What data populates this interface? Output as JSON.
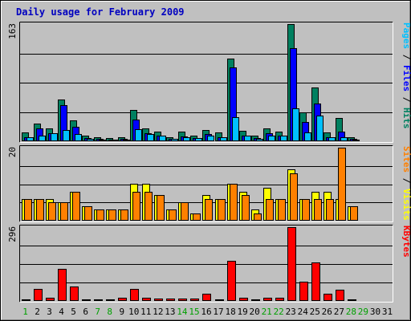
{
  "title": "Daily usage for February 2009",
  "colors": {
    "background": "#c0c0c0",
    "plot_bg": "#c0c0c0",
    "title": "#0000c0",
    "hits": "#008060",
    "files": "#0000ff",
    "pages": "#00c0ff",
    "visits": "#ffff00",
    "sites": "#ff8000",
    "kbytes": "#ff0000",
    "weekend_day": "#00a000",
    "weekday": "#000000"
  },
  "chart_data": [
    {
      "type": "bar",
      "panel": "hits-files-pages",
      "ymax_label": "163",
      "ylim": [
        0,
        163
      ],
      "axis_label_parts": [
        "Pages",
        " / ",
        "Files",
        " / ",
        "Hits"
      ],
      "categories": [
        "1",
        "2",
        "3",
        "4",
        "5",
        "6",
        "7",
        "8",
        "9",
        "10",
        "11",
        "12",
        "13",
        "14",
        "15",
        "16",
        "17",
        "18",
        "19",
        "20",
        "21",
        "22",
        "23",
        "24",
        "25",
        "26",
        "27",
        "28",
        "29",
        "30",
        "31"
      ],
      "series": [
        {
          "name": "Hits",
          "values": [
            12,
            25,
            18,
            58,
            29,
            8,
            6,
            5,
            6,
            44,
            18,
            13,
            6,
            13,
            8,
            16,
            12,
            115,
            14,
            8,
            18,
            13,
            163,
            40,
            75,
            12,
            32,
            6,
            0,
            0,
            0
          ]
        },
        {
          "name": "Files",
          "values": [
            6,
            18,
            11,
            50,
            20,
            4,
            3,
            2,
            3,
            30,
            11,
            8,
            3,
            7,
            4,
            10,
            6,
            103,
            8,
            4,
            11,
            8,
            130,
            27,
            53,
            6,
            13,
            3,
            0,
            0,
            0
          ]
        },
        {
          "name": "Pages",
          "values": [
            6,
            8,
            11,
            16,
            10,
            3,
            2,
            2,
            2,
            17,
            10,
            8,
            3,
            6,
            4,
            8,
            6,
            33,
            8,
            3,
            8,
            8,
            46,
            12,
            36,
            6,
            6,
            2,
            0,
            0,
            0
          ]
        }
      ]
    },
    {
      "type": "bar",
      "panel": "visits-sites",
      "ymax_label": "20",
      "ylim": [
        0,
        20
      ],
      "axis_label_parts": [
        "Sites",
        " / ",
        "Visits"
      ],
      "categories": [
        "1",
        "2",
        "3",
        "4",
        "5",
        "6",
        "7",
        "8",
        "9",
        "10",
        "11",
        "12",
        "13",
        "14",
        "15",
        "16",
        "17",
        "18",
        "19",
        "20",
        "21",
        "22",
        "23",
        "24",
        "25",
        "26",
        "27",
        "28",
        "29",
        "30",
        "31"
      ],
      "series": [
        {
          "name": "Visits",
          "values": [
            6,
            6,
            6,
            5,
            8,
            4,
            3,
            3,
            3,
            10,
            10,
            7,
            3,
            5,
            2,
            7,
            6,
            10,
            8,
            3,
            9,
            6,
            14,
            6,
            8,
            8,
            6,
            4,
            0,
            0,
            0
          ]
        },
        {
          "name": "Sites",
          "values": [
            6,
            6,
            5,
            5,
            8,
            4,
            3,
            3,
            3,
            8,
            8,
            7,
            3,
            5,
            2,
            6,
            6,
            10,
            7,
            2,
            6,
            6,
            13,
            6,
            6,
            6,
            20,
            4,
            0,
            0,
            0
          ]
        }
      ]
    },
    {
      "type": "bar",
      "panel": "kbytes",
      "ymax_label": "296",
      "ylim": [
        0,
        296
      ],
      "axis_label_parts": [
        "KBytes"
      ],
      "categories": [
        "1",
        "2",
        "3",
        "4",
        "5",
        "6",
        "7",
        "8",
        "9",
        "10",
        "11",
        "12",
        "13",
        "14",
        "15",
        "16",
        "17",
        "18",
        "19",
        "20",
        "21",
        "22",
        "23",
        "24",
        "25",
        "26",
        "27",
        "28",
        "29",
        "30",
        "31"
      ],
      "series": [
        {
          "name": "KBytes",
          "values": [
            8,
            47,
            14,
            128,
            58,
            8,
            5,
            5,
            12,
            47,
            12,
            10,
            10,
            10,
            10,
            30,
            8,
            162,
            12,
            5,
            12,
            14,
            296,
            78,
            155,
            30,
            45,
            6,
            0,
            0,
            0
          ]
        }
      ]
    }
  ],
  "x_labels": [
    {
      "label": "1",
      "weekend": true
    },
    {
      "label": "2",
      "weekend": false
    },
    {
      "label": "3",
      "weekend": false
    },
    {
      "label": "4",
      "weekend": false
    },
    {
      "label": "5",
      "weekend": false
    },
    {
      "label": "6",
      "weekend": false
    },
    {
      "label": "7",
      "weekend": true
    },
    {
      "label": "8",
      "weekend": true
    },
    {
      "label": "9",
      "weekend": false
    },
    {
      "label": "10",
      "weekend": false
    },
    {
      "label": "11",
      "weekend": false
    },
    {
      "label": "12",
      "weekend": false
    },
    {
      "label": "13",
      "weekend": false
    },
    {
      "label": "14",
      "weekend": true
    },
    {
      "label": "15",
      "weekend": true
    },
    {
      "label": "16",
      "weekend": false
    },
    {
      "label": "17",
      "weekend": false
    },
    {
      "label": "18",
      "weekend": false
    },
    {
      "label": "19",
      "weekend": false
    },
    {
      "label": "20",
      "weekend": false
    },
    {
      "label": "21",
      "weekend": true
    },
    {
      "label": "22",
      "weekend": true
    },
    {
      "label": "23",
      "weekend": false
    },
    {
      "label": "24",
      "weekend": false
    },
    {
      "label": "25",
      "weekend": false
    },
    {
      "label": "26",
      "weekend": false
    },
    {
      "label": "27",
      "weekend": false
    },
    {
      "label": "28",
      "weekend": true
    },
    {
      "label": "29",
      "weekend": true
    },
    {
      "label": "30",
      "weekend": false
    },
    {
      "label": "31",
      "weekend": false
    }
  ]
}
